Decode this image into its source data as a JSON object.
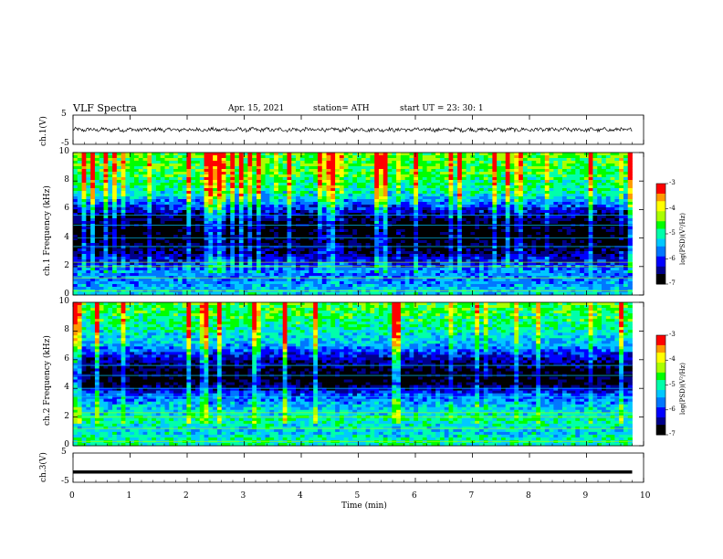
{
  "header": {
    "title": "VLF  Spectra",
    "date": "Apr. 15, 2021",
    "station": "station= ATH",
    "start": "start  UT  =    23: 30: 1"
  },
  "x_axis": {
    "label": "Time  (min)",
    "ticks": [
      "0",
      "1",
      "2",
      "3",
      "4",
      "5",
      "6",
      "7",
      "8",
      "9",
      "10"
    ]
  },
  "panel_labels": {
    "ch1_wave": "ch.1(V)",
    "ch1_freq": "ch.1  Frequency  (kHz)",
    "ch2_freq": "ch.2  Frequency  (kHz)",
    "ch3_wave": "ch.3(V)",
    "wave_ticks": [
      "5",
      "-5"
    ],
    "freq_ticks": [
      "10",
      "8",
      "6",
      "4",
      "2",
      "0"
    ]
  },
  "colorbar": {
    "label": "log(PSD)(V²/Hz)",
    "ticks": [
      "-3",
      "-4",
      "-5",
      "-6",
      "-7"
    ]
  },
  "colors": {
    "spectral": [
      "#000000",
      "#00008a",
      "#0000ff",
      "#0077ff",
      "#00c8ff",
      "#00ffaa",
      "#00ff00",
      "#aaff00",
      "#ffff00",
      "#ff9900",
      "#ff0000",
      "#ffffff"
    ]
  },
  "chart_data": [
    {
      "type": "line",
      "title": "VLF  Spectra",
      "panel": "ch.1(V)",
      "xlabel": "Time  (min)",
      "ylabel": "ch.1(V)",
      "xlim": [
        0,
        10
      ],
      "ylim": [
        -5,
        5
      ],
      "x_data_end": 9.8,
      "baseline": 0,
      "noise_amplitude": 0.6
    },
    {
      "type": "heatmap",
      "panel": "ch.1",
      "ylabel": "Frequency  (kHz)",
      "xlim": [
        0,
        10
      ],
      "ylim": [
        0,
        10
      ],
      "x_data_end": 9.8,
      "colorbar_label": "log(PSD)(V²/Hz)",
      "zlim": [
        -7,
        -3
      ],
      "psd_profile_khz": [
        {
          "f": 0,
          "v": -5.2
        },
        {
          "f": 0.8,
          "v": -5.6
        },
        {
          "f": 1.5,
          "v": -5.6
        },
        {
          "f": 2.2,
          "v": -6.0
        },
        {
          "f": 3.0,
          "v": -6.6
        },
        {
          "f": 4.2,
          "v": -7.0
        },
        {
          "f": 5.0,
          "v": -6.9
        },
        {
          "f": 6.0,
          "v": -6.2
        },
        {
          "f": 7.0,
          "v": -5.2
        },
        {
          "f": 8.5,
          "v": -4.7
        },
        {
          "f": 10,
          "v": -4.5
        }
      ]
    },
    {
      "type": "heatmap",
      "panel": "ch.2",
      "ylabel": "Frequency  (kHz)",
      "xlim": [
        0,
        10
      ],
      "ylim": [
        0,
        10
      ],
      "x_data_end": 9.8,
      "colorbar_label": "log(PSD)(V²/Hz)",
      "zlim": [
        -7,
        -3
      ],
      "psd_profile_khz": [
        {
          "f": 0,
          "v": -4.9
        },
        {
          "f": 1.0,
          "v": -5.3
        },
        {
          "f": 1.8,
          "v": -5.0
        },
        {
          "f": 2.5,
          "v": -5.3
        },
        {
          "f": 3.5,
          "v": -5.8
        },
        {
          "f": 4.4,
          "v": -6.9
        },
        {
          "f": 5.2,
          "v": -6.8
        },
        {
          "f": 6.0,
          "v": -6.4
        },
        {
          "f": 7.0,
          "v": -5.5
        },
        {
          "f": 8.5,
          "v": -4.9
        },
        {
          "f": 10,
          "v": -4.6
        }
      ]
    },
    {
      "type": "line",
      "panel": "ch.3(V)",
      "ylabel": "ch.3(V)",
      "xlim": [
        0,
        10
      ],
      "ylim": [
        -5,
        5
      ],
      "x_data_end": 9.8,
      "constant_value": -1.5
    }
  ]
}
